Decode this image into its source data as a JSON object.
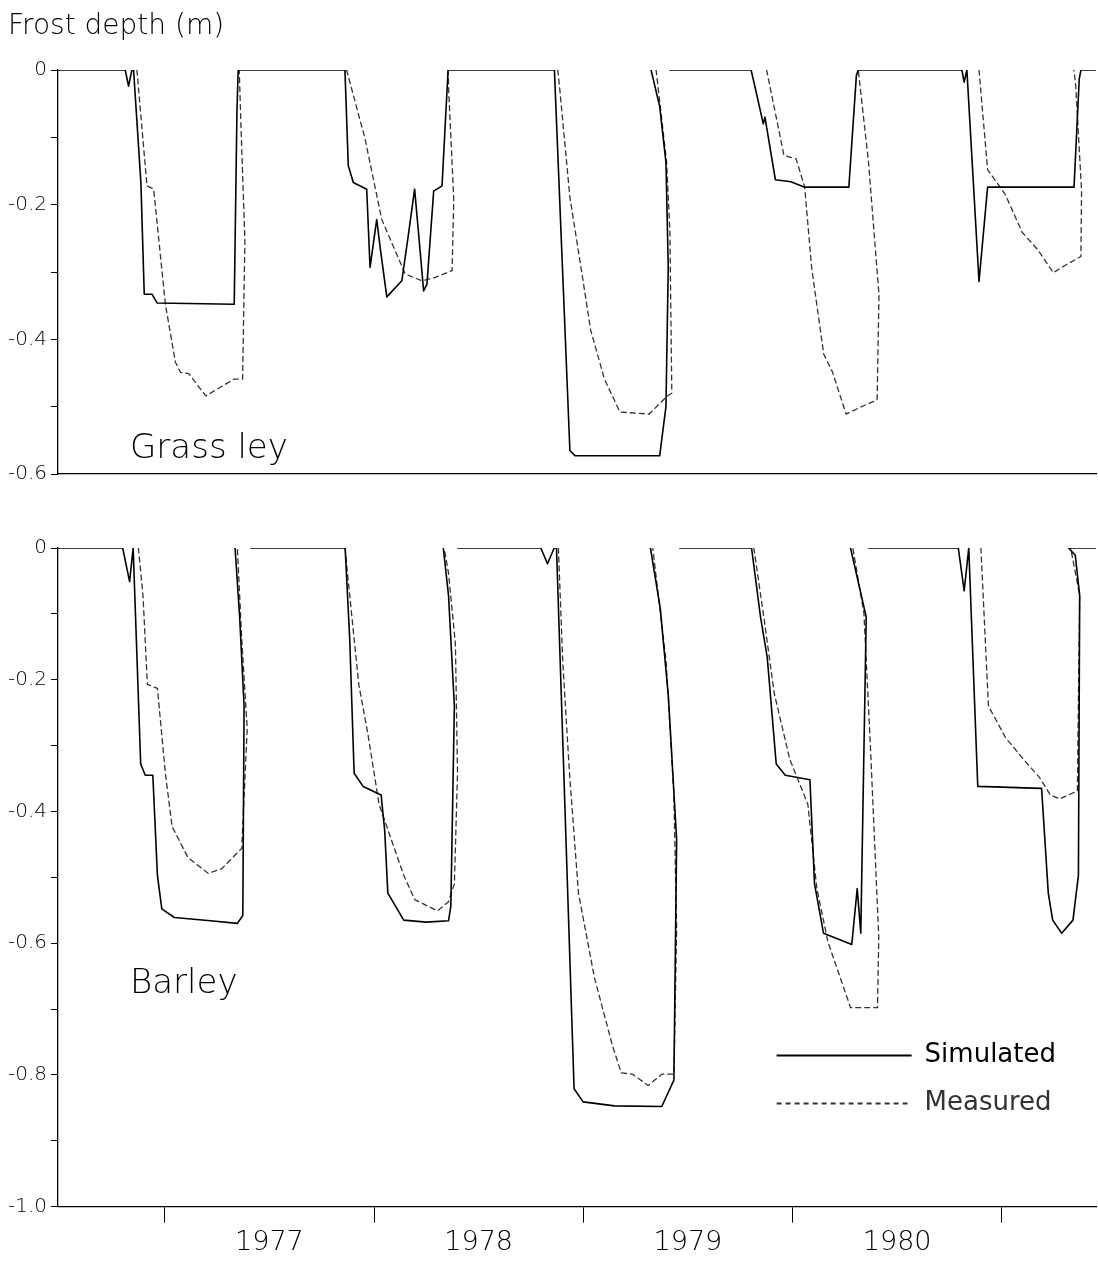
{
  "chart_data": [
    {
      "type": "line",
      "ylabel": "Frost depth (m)",
      "annotations": [
        "Grass ley"
      ],
      "xlim": [
        1976.49,
        1981.45
      ],
      "ylim": [
        -0.6,
        0
      ],
      "yticks": [
        0,
        {
          "value": -0.1,
          "label": null
        },
        {
          "value": -0.2,
          "label": "-0.2"
        },
        {
          "value": -0.3,
          "label": null
        },
        {
          "value": -0.4,
          "label": "-0.4"
        },
        {
          "value": -0.5,
          "label": null
        },
        {
          "value": -0.6,
          "label": "-0.6"
        }
      ],
      "tick_labels": "y",
      "series": [
        {
          "color": "#000000",
          "line_style": "solid",
          "x": [
            1976.49,
            1976.811,
            1976.827,
            1976.843,
            1976.851,
            1976.886,
            1976.902,
            1976.939,
            1976.963,
            1977.332,
            1977.345,
            1977.351,
            1977.861,
            1977.877,
            1977.901,
            1977.965,
            1977.981,
            1978.013,
            1978.029,
            1978.061,
            1978.133,
            1978.165,
            1978.194,
            1978.213,
            1978.237,
            1978.253,
            1978.285,
            1978.325,
            1978.354,
            1978.814,
            1978.862,
            1978.936,
            1978.961,
            1979.365,
            1979.395,
            1979.406,
            1979.395,
            1979.365,
            1979.324,
            1979.37,
            1979.414,
            1979.802,
            1979.827,
            1979.86,
            1979.868,
            1979.918,
            1979.992,
            1980.058,
            1980.269,
            1980.305,
            1980.314,
            1980.809,
            1980.82,
            1980.833,
            1980.891,
            1980.932,
            1981.345,
            1981.37,
            1981.378,
            1981.45
          ],
          "values": [
            0,
            0,
            -0.024,
            0,
            0,
            -0.167,
            -0.333,
            -0.333,
            -0.346,
            -0.348,
            -0.061,
            0,
            0,
            -0.142,
            -0.167,
            -0.177,
            -0.293,
            -0.222,
            -0.263,
            -0.337,
            -0.313,
            -0.243,
            -0.177,
            -0.243,
            -0.328,
            -0.318,
            -0.18,
            -0.172,
            0,
            0,
            0,
            -0.565,
            -0.573,
            -0.573,
            -0.5,
            -0.293,
            -0.137,
            -0.054,
            0,
            null,
            0,
            0,
            -0.034,
            -0.08,
            -0.07,
            -0.163,
            -0.166,
            -0.174,
            -0.174,
            -0.008,
            0,
            0,
            -0.018,
            0,
            -0.314,
            -0.174,
            -0.174,
            -0.013,
            0,
            0
          ]
        },
        {
          "color": "#333333",
          "line_style": "dashed",
          "x": [
            1976.867,
            1976.915,
            1976.947,
            1977.003,
            1977.051,
            1977.075,
            1977.115,
            1977.196,
            1977.332,
            1977.372,
            1977.383,
            1977.364,
            1977.356,
            1977.6,
            1977.869,
            1977.957,
            1978.037,
            1978.149,
            1978.229,
            1978.293,
            1978.373,
            1978.381,
            1978.357,
            1978.354,
            1978.6,
            1978.878,
            1978.886,
            1978.936,
            1979.002,
            1979.035,
            1979.101,
            1979.175,
            1979.315,
            1979.398,
            1979.423,
            1979.414,
            1979.398,
            1979.348,
            1979.6,
            1979.876,
            1979.959,
            1980.017,
            1980.058,
            1980.091,
            1980.149,
            1980.19,
            1980.256,
            1980.33,
            1980.404,
            1980.413,
            1980.363,
            1980.314,
            1980.6,
            1980.891,
            1980.932,
            1981.015,
            1981.097,
            1981.172,
            1981.246,
            1981.303,
            1981.378,
            1981.381,
            1981.353,
            1981.345
          ],
          "values": [
            0,
            -0.172,
            -0.177,
            -0.348,
            -0.434,
            -0.449,
            -0.451,
            -0.484,
            -0.459,
            -0.459,
            -0.253,
            -0.082,
            0,
            null,
            0,
            -0.102,
            -0.222,
            -0.303,
            -0.313,
            -0.308,
            -0.298,
            -0.192,
            -0.031,
            0,
            null,
            0,
            -0.023,
            -0.189,
            -0.319,
            -0.386,
            -0.459,
            -0.508,
            -0.511,
            -0.485,
            -0.48,
            -0.241,
            -0.137,
            0,
            null,
            0,
            -0.127,
            -0.132,
            -0.174,
            -0.293,
            -0.422,
            -0.448,
            -0.511,
            -0.5,
            -0.49,
            -0.334,
            -0.137,
            0,
            null,
            0,
            -0.148,
            -0.184,
            -0.241,
            -0.267,
            -0.301,
            -0.29,
            -0.277,
            -0.179,
            -0.023,
            0
          ]
        }
      ]
    },
    {
      "type": "line",
      "annotations": [
        "Barley"
      ],
      "legend": "bottom right",
      "xlim": [
        1976.49,
        1981.45
      ],
      "xticks": [
        {
          "value": 1977,
          "label": null
        },
        {
          "value": 1977.5,
          "label": "1977"
        },
        {
          "value": 1978,
          "label": null
        },
        {
          "value": 1978.5,
          "label": "1978"
        },
        {
          "value": 1979,
          "label": null
        },
        {
          "value": 1979.5,
          "label": "1979"
        },
        {
          "value": 1980,
          "label": null
        },
        {
          "value": 1980.5,
          "label": "1980"
        },
        {
          "value": 1981,
          "label": null
        }
      ],
      "ylim": [
        -1,
        0
      ],
      "yticks": [
        0,
        {
          "value": -0.1,
          "label": null
        },
        {
          "value": -0.2,
          "label": "-0.2"
        },
        {
          "value": -0.3,
          "label": null
        },
        {
          "value": -0.4,
          "label": "-0.4"
        },
        {
          "value": -0.5,
          "label": null
        },
        {
          "value": -0.6,
          "label": "-0.6"
        },
        {
          "value": -0.7,
          "label": null
        },
        {
          "value": -0.8,
          "label": "-0.8"
        },
        {
          "value": -0.9,
          "label": null
        },
        {
          "value": -1,
          "label": "-1.0"
        }
      ],
      "series": [
        {
          "name": "Simulated",
          "color": "#000000",
          "line_style": "solid",
          "x": [
            1976.49,
            1976.799,
            1976.832,
            1976.849,
            1976.885,
            1976.907,
            1976.943,
            1976.965,
            1976.986,
            1977.046,
            1977.218,
            1977.347,
            1977.373,
            1977.379,
            1977.358,
            1977.336,
            1977.37,
            1977.411,
            1977.862,
            1977.884,
            1977.905,
            1977.948,
            1978.034,
            1978.051,
            1978.066,
            1978.142,
            1978.249,
            1978.356,
            1978.367,
            1978.384,
            1978.356,
            1978.331,
            1978.37,
            1978.4,
            1978.797,
            1978.829,
            1978.861,
            1978.872,
            1978.956,
            1978.999,
            1979.149,
            1979.375,
            1979.433,
            1979.446,
            1979.407,
            1979.368,
            1979.321,
            1979.4,
            1979.461,
            1979.804,
            1979.847,
            1979.879,
            1979.922,
            1979.965,
            1980.083,
            1980.105,
            1980.148,
            1980.283,
            1980.309,
            1980.326,
            1980.352,
            1980.277,
            1980.32,
            1980.363,
            1980.792,
            1980.82,
            1980.842,
            1980.885,
            1981.19,
            1981.222,
            1981.243,
            1981.286,
            1981.34,
            1981.366,
            1981.372,
            1981.351,
            1981.319,
            1981.45
          ],
          "values": [
            0,
            0,
            -0.051,
            0,
            -0.328,
            -0.345,
            -0.345,
            -0.497,
            -0.548,
            -0.561,
            -0.566,
            -0.57,
            -0.558,
            -0.24,
            -0.105,
            0,
            null,
            0,
            0,
            -0.139,
            -0.342,
            -0.362,
            -0.375,
            -0.429,
            -0.524,
            -0.565,
            -0.568,
            -0.566,
            -0.544,
            -0.24,
            -0.072,
            0,
            null,
            0,
            0,
            -0.024,
            0,
            0,
            -0.821,
            -0.841,
            -0.847,
            -0.848,
            -0.808,
            -0.443,
            -0.227,
            -0.092,
            0,
            null,
            0,
            0,
            -0.105,
            -0.166,
            -0.328,
            -0.345,
            -0.352,
            -0.51,
            -0.585,
            -0.602,
            -0.517,
            -0.585,
            -0.105,
            0,
            null,
            0,
            0,
            -0.065,
            0,
            -0.362,
            -0.365,
            -0.524,
            -0.565,
            -0.585,
            -0.565,
            -0.497,
            -0.072,
            -0.011,
            0,
            0
          ]
        },
        {
          "name": "Measured",
          "color": "#333333",
          "line_style": "dashed",
          "x": [
            1976.874,
            1976.896,
            1976.917,
            1976.939,
            1976.965,
            1977.003,
            1977.035,
            1977.111,
            1977.207,
            1977.272,
            1977.368,
            1977.394,
            1977.368,
            1977.347,
            1977.6,
            1977.862,
            1977.873,
            1977.927,
            1977.97,
            1978.024,
            1978.142,
            1978.195,
            1978.303,
            1978.356,
            1978.384,
            1978.399,
            1978.389,
            1978.356,
            1978.335,
            1978.6,
            1978.881,
            1978.902,
            1978.934,
            1978.977,
            1979.053,
            1979.138,
            1979.181,
            1979.235,
            1979.31,
            1979.375,
            1979.433,
            1979.446,
            1979.433,
            1979.396,
            1979.332,
            1979.6,
            1979.815,
            1979.869,
            1979.912,
            1979.987,
            1980.073,
            1980.116,
            1980.169,
            1980.277,
            1980.406,
            1980.412,
            1980.373,
            1980.341,
            1980.288,
            1980.6,
            1980.9,
            1980.936,
            1981.018,
            1981.104,
            1981.179,
            1981.232,
            1981.275,
            1981.361,
            1981.372,
            1981.329
          ],
          "values": [
            0,
            -0.072,
            -0.207,
            -0.21,
            -0.213,
            -0.342,
            -0.423,
            -0.47,
            -0.494,
            -0.487,
            -0.456,
            -0.274,
            -0.139,
            0,
            null,
            0,
            -0.038,
            -0.207,
            -0.281,
            -0.389,
            -0.497,
            -0.534,
            -0.551,
            -0.537,
            -0.51,
            -0.342,
            -0.146,
            -0.038,
            0,
            null,
            0,
            -0.173,
            -0.342,
            -0.524,
            -0.652,
            -0.754,
            -0.797,
            -0.799,
            -0.816,
            -0.799,
            -0.799,
            -0.578,
            -0.375,
            -0.173,
            0,
            null,
            0,
            -0.119,
            -0.22,
            -0.321,
            -0.389,
            -0.517,
            -0.598,
            -0.698,
            -0.698,
            -0.591,
            -0.308,
            -0.099,
            0,
            null,
            0,
            -0.24,
            -0.288,
            -0.321,
            -0.348,
            -0.375,
            -0.381,
            -0.369,
            -0.072,
            0
          ]
        }
      ]
    }
  ]
}
